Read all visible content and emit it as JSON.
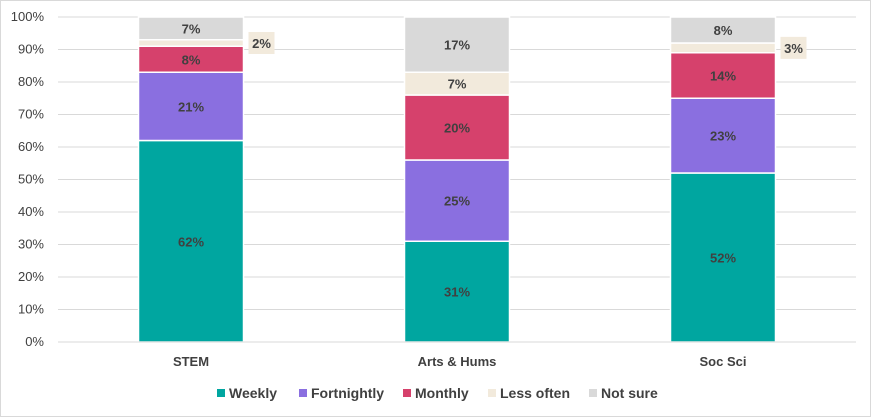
{
  "chart_data": {
    "type": "bar",
    "stacked": true,
    "categories": [
      "STEM",
      "Arts & Hums",
      "Soc Sci"
    ],
    "series": [
      {
        "name": "Weekly",
        "values": [
          62,
          31,
          52
        ],
        "color": "#00a6a0"
      },
      {
        "name": "Fortnightly",
        "values": [
          21,
          25,
          23
        ],
        "color": "#8a6fe0"
      },
      {
        "name": "Monthly",
        "values": [
          8,
          20,
          14
        ],
        "color": "#d6416c"
      },
      {
        "name": "Less often",
        "values": [
          2,
          7,
          3
        ],
        "color": "#f2eadc"
      },
      {
        "name": "Not sure",
        "values": [
          7,
          17,
          8
        ],
        "color": "#d9d9d9"
      }
    ],
    "data_labels": [
      [
        "62%",
        "21%",
        "8%",
        "2%",
        "7%"
      ],
      [
        "31%",
        "25%",
        "20%",
        "7%",
        "17%"
      ],
      [
        "52%",
        "23%",
        "14%",
        "3%",
        "8%"
      ]
    ],
    "y_ticks": [
      "0%",
      "10%",
      "20%",
      "30%",
      "40%",
      "50%",
      "60%",
      "70%",
      "80%",
      "90%",
      "100%"
    ],
    "ylim": [
      0,
      100
    ],
    "grid": true,
    "legend_position": "bottom",
    "title": "",
    "xlabel": "",
    "ylabel": ""
  }
}
